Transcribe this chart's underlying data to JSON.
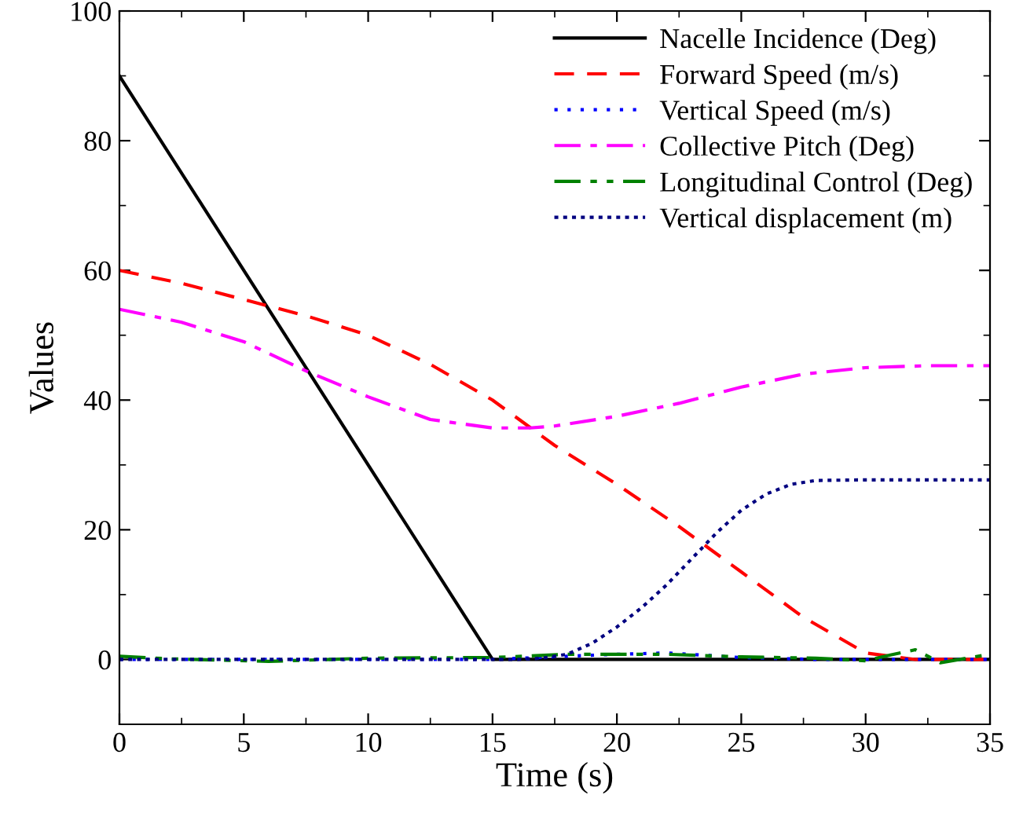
{
  "chart_data": {
    "type": "line",
    "xlabel": "Time (s)",
    "ylabel": "Values",
    "xlim": [
      0,
      35
    ],
    "ylim": [
      -10,
      100
    ],
    "xticks": [
      0,
      5,
      10,
      15,
      20,
      25,
      30,
      35
    ],
    "yticks": [
      0,
      20,
      40,
      60,
      80,
      100
    ],
    "grid": false,
    "legend": "top right",
    "marker": "none",
    "series": [
      {
        "name": "Nacelle Incidence (Deg)",
        "color": "#000000",
        "line_style": "solid",
        "x": [
          0,
          15,
          35
        ],
        "values": [
          90,
          0,
          0
        ]
      },
      {
        "name": "Forward Speed (m/s)",
        "color": "#ff0000",
        "line_style": "dashed",
        "x": [
          0,
          2.5,
          5,
          7.5,
          10,
          12.5,
          15,
          17.5,
          20,
          22.5,
          25,
          27.5,
          30,
          32,
          35
        ],
        "values": [
          60,
          58,
          55.5,
          53,
          50,
          45.5,
          40,
          33,
          27,
          20.5,
          13.5,
          6.5,
          1,
          0,
          0
        ]
      },
      {
        "name": "Vertical Speed (m/s)",
        "color": "#0000ff",
        "line_style": "dotted",
        "x": [
          0,
          15,
          18,
          20,
          22,
          25,
          28,
          35
        ],
        "values": [
          0,
          0,
          0.5,
          0.8,
          1,
          0.3,
          0,
          0
        ]
      },
      {
        "name": "Collective Pitch (Deg)",
        "color": "#ff00ff",
        "line_style": "dashdot",
        "x": [
          0,
          2.5,
          5,
          7.5,
          10,
          12.5,
          15,
          16.5,
          17.5,
          20,
          22.5,
          25,
          27.5,
          30,
          32.5,
          35
        ],
        "values": [
          54,
          52,
          49,
          44.5,
          40.5,
          37,
          35.7,
          35.7,
          36,
          37.5,
          39.5,
          42,
          44,
          45,
          45.3,
          45.3
        ]
      },
      {
        "name": "Longitudinal Control (Deg)",
        "color": "#008000",
        "line_style": "dashdotdot",
        "x": [
          0,
          2,
          6,
          10,
          15,
          18,
          22,
          25,
          28,
          30,
          31,
          32,
          33,
          35
        ],
        "values": [
          0.5,
          0.1,
          -0.3,
          0.2,
          0.3,
          0.8,
          0.8,
          0.4,
          0.2,
          -0.2,
          0.7,
          1.5,
          -0.5,
          0.8
        ]
      },
      {
        "name": "Vertical displacement (m)",
        "color": "#000080",
        "line_style": "densedotted",
        "x": [
          0,
          16,
          17,
          18,
          19,
          20,
          21,
          22,
          23,
          24,
          25,
          26,
          27,
          28,
          30,
          35
        ],
        "values": [
          0,
          0,
          0.2,
          0.8,
          2.5,
          5,
          8,
          11.5,
          15.5,
          19.5,
          23,
          25.5,
          27,
          27.6,
          27.7,
          27.7
        ]
      }
    ]
  }
}
